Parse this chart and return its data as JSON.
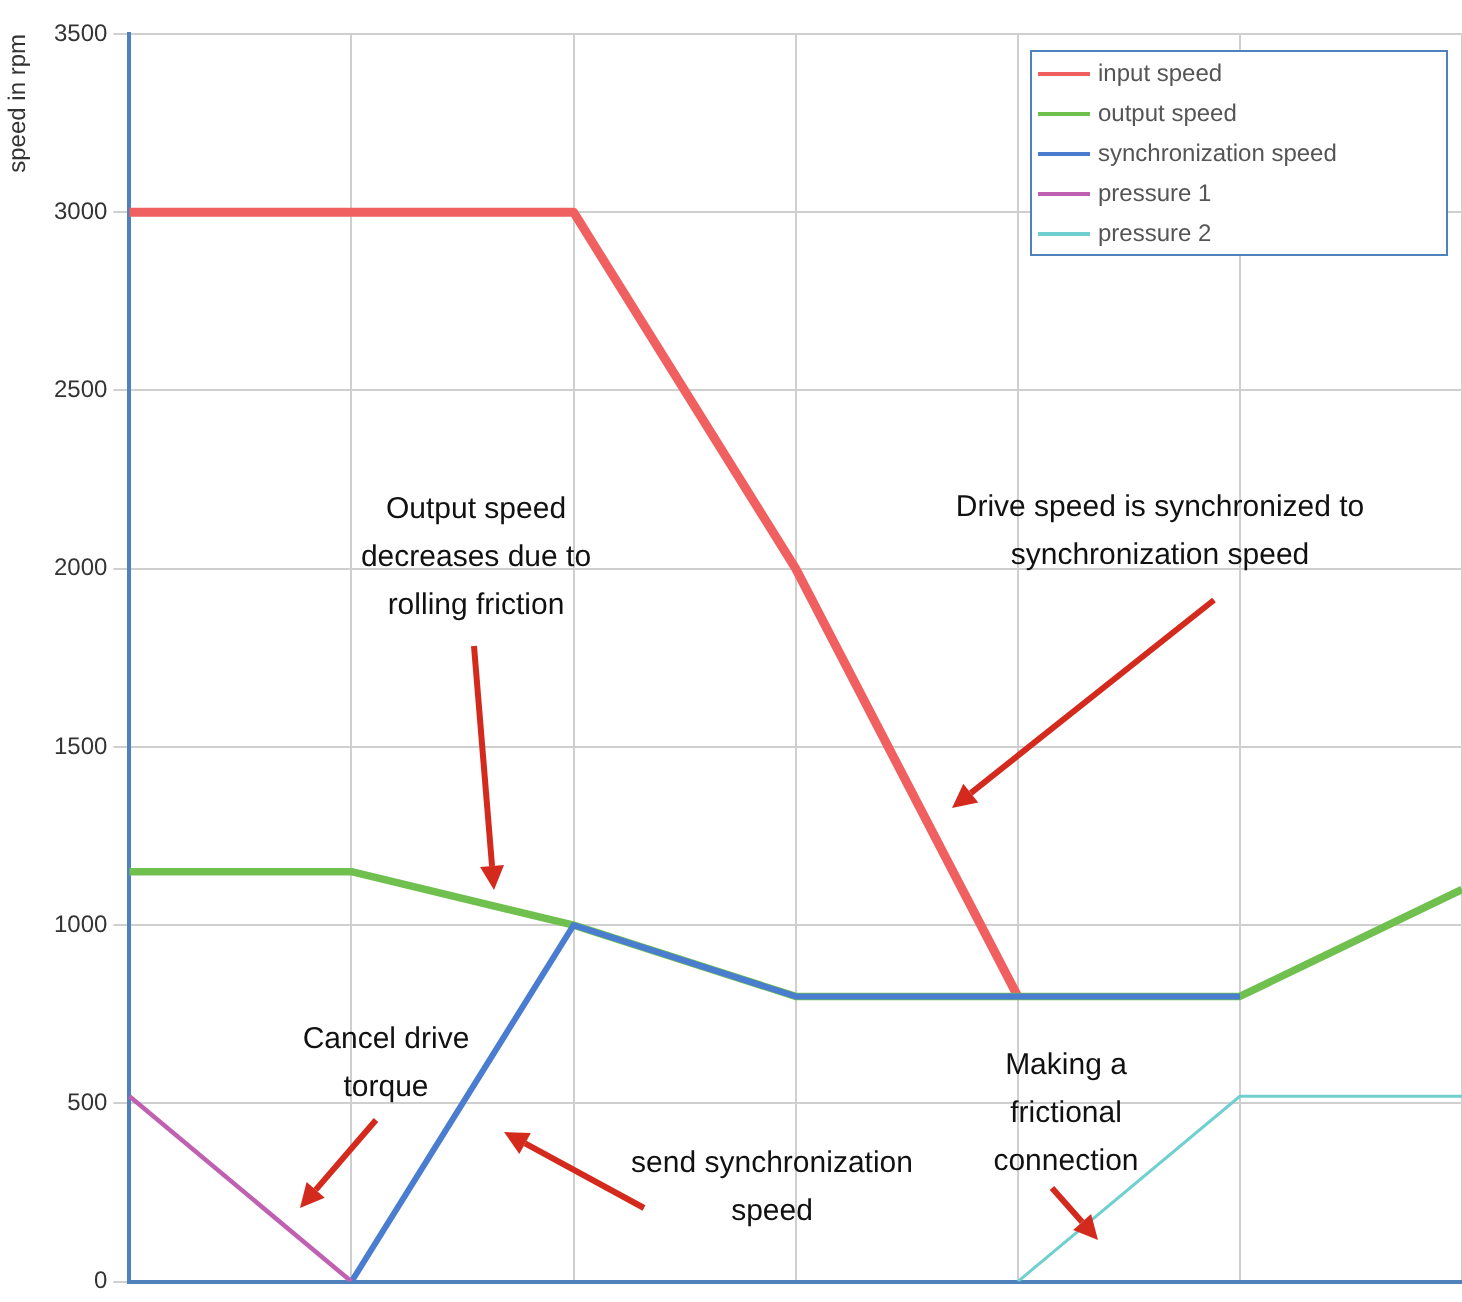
{
  "chart_data": {
    "type": "line",
    "ylabel": "speed in rpm",
    "categories": [
      null,
      null,
      null,
      null,
      null,
      null,
      null
    ],
    "series": [
      {
        "name": "input speed",
        "color": "#f06060",
        "values": [
          3000,
          3000,
          3000,
          2000,
          800,
          null,
          null
        ]
      },
      {
        "name": "output speed",
        "color": "#70c050",
        "values": [
          1150,
          1150,
          1000,
          800,
          800,
          800,
          1100
        ]
      },
      {
        "name": "synchronization speed",
        "color": "#4a7cd0",
        "values": [
          null,
          0,
          1000,
          800,
          800,
          800,
          null
        ]
      },
      {
        "name": "pressure 1",
        "color": "#c060b0",
        "values": [
          520,
          0,
          null,
          null,
          null,
          null,
          null
        ]
      },
      {
        "name": "pressure 2",
        "color": "#70d0d0",
        "values": [
          null,
          null,
          null,
          null,
          0,
          520,
          520
        ]
      }
    ],
    "ylim": [
      0,
      3500
    ],
    "yticks": [
      0,
      500,
      1000,
      1500,
      2000,
      2500,
      3000,
      3500
    ],
    "tick_labels": "y",
    "grid": true,
    "legend": "top right",
    "marker": "none",
    "line_style": "solid",
    "annotations": [
      "Output speed\ndecreases due to\nrolling friction",
      "Drive speed is synchronized to\nsynchronization speed",
      "Cancel drive\ntorque",
      "send synchronization\nspeed",
      "Making a\nfrictional\nconnection"
    ]
  }
}
